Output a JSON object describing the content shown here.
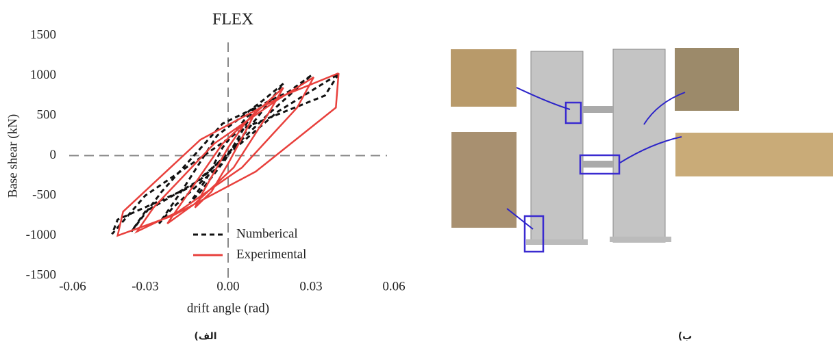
{
  "chart_data": {
    "type": "line",
    "title": "FLEX",
    "x_label": "drift angle (rad)",
    "y_label": "Base shear (kN)",
    "xlim": [
      -0.06,
      0.06
    ],
    "ylim": [
      -1500,
      1500
    ],
    "xticks": [
      -0.06,
      -0.03,
      {
        "value": 0,
        "label": "0.00"
      },
      0.03,
      0.06
    ],
    "yticks": [
      1500,
      1000,
      500,
      0,
      -500,
      -1000,
      -1500
    ],
    "series": [
      {
        "name": "Numberical",
        "color": "#111111",
        "dash": true,
        "x": [
          0.01,
          0.006,
          -0.002,
          -0.008,
          -0.014,
          -0.01,
          -0.001,
          0.005,
          0.01,
          null,
          0.02,
          0.013,
          -0.004,
          -0.016,
          -0.025,
          -0.02,
          -0.004,
          0.01,
          0.02,
          null,
          0.03,
          0.022,
          -0.002,
          -0.024,
          -0.035,
          -0.03,
          -0.01,
          0.014,
          0.03,
          null,
          0.04,
          0.035,
          0.006,
          -0.03,
          -0.042,
          -0.04,
          -0.014,
          0.018,
          0.04
        ],
        "values": [
          600,
          450,
          100,
          -300,
          -600,
          -450,
          -50,
          300,
          600,
          null,
          900,
          700,
          250,
          -400,
          -850,
          -650,
          -150,
          450,
          900,
          null,
          1000,
          800,
          400,
          -450,
          -950,
          -700,
          -300,
          500,
          1000,
          null,
          1020,
          750,
          350,
          -500,
          -980,
          -800,
          -400,
          550,
          1020
        ]
      },
      {
        "name": "Experimental",
        "color": "#e8403c",
        "dash": false,
        "x": [
          0.01,
          0.007,
          0.0,
          -0.006,
          -0.012,
          -0.009,
          0.0,
          0.006,
          0.01,
          null,
          0.02,
          0.015,
          0.002,
          -0.012,
          -0.022,
          -0.017,
          -0.002,
          0.012,
          0.02,
          null,
          0.031,
          0.025,
          0.005,
          -0.018,
          -0.033,
          -0.027,
          -0.005,
          0.018,
          0.031,
          null,
          0.04,
          0.039,
          0.01,
          -0.02,
          -0.04,
          -0.038,
          -0.01,
          0.02,
          0.04
        ],
        "values": [
          550,
          350,
          -100,
          -450,
          -650,
          -450,
          100,
          400,
          550,
          null,
          850,
          550,
          -150,
          -600,
          -850,
          -600,
          150,
          600,
          850,
          null,
          980,
          600,
          -150,
          -700,
          -950,
          -650,
          150,
          700,
          980,
          null,
          1030,
          600,
          -200,
          -750,
          -1000,
          -700,
          200,
          750,
          1030
        ]
      }
    ]
  },
  "captions": {
    "left": "الف)",
    "right": "ب)"
  }
}
